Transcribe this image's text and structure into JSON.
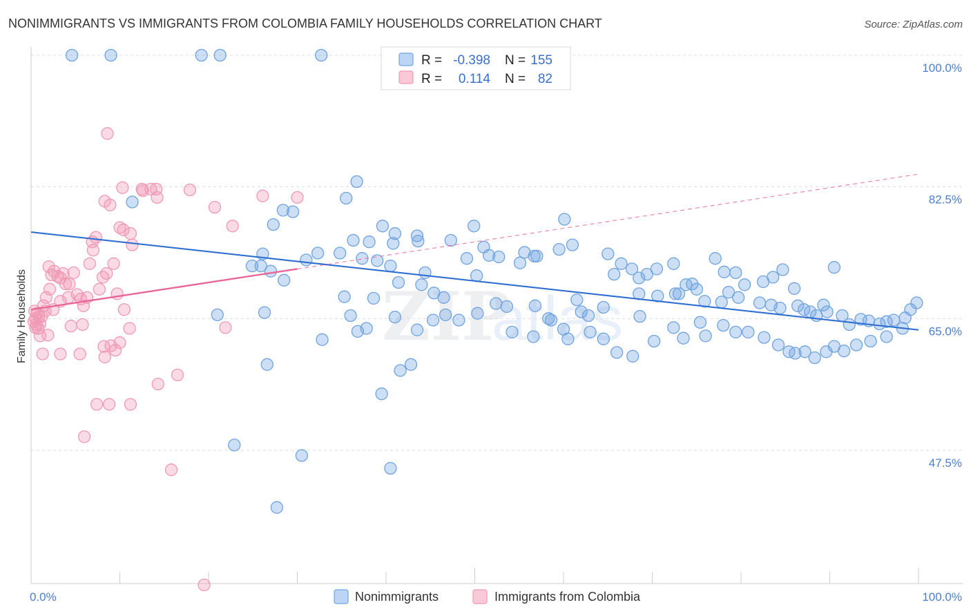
{
  "chart_data": {
    "type": "scatter",
    "title": "NONIMMIGRANTS VS IMMIGRANTS FROM COLOMBIA FAMILY HOUSEHOLDS CORRELATION CHART",
    "source": "Source: ZipAtlas.com",
    "watermark": "ZIPatlas",
    "ylabel": "Family Households",
    "xlabel": "",
    "xlim": [
      0,
      100
    ],
    "ylim": [
      29,
      100
    ],
    "x_tick_labels": [
      "0.0%",
      "100.0%"
    ],
    "y_ticks": [
      47.5,
      65.0,
      82.5,
      100.0
    ],
    "y_tick_labels": [
      "47.5%",
      "65.0%",
      "82.5%",
      "100.0%"
    ],
    "grid": "horizontal dashed",
    "colors": {
      "nonimmigrants": "#6fa3e0",
      "nonimmigrants_line": "#2f6fd1",
      "immigrants": "#f099b4",
      "immigrants_line": "#e8679a",
      "grid": "#d9dde3",
      "axis": "#cccccc"
    },
    "stats": [
      {
        "r_label": "R =",
        "r_value": "-0.398",
        "n_label": "N =",
        "n_value": "155"
      },
      {
        "r_label": "R =",
        "r_value": "0.114",
        "n_label": "N =",
        "n_value": "82"
      }
    ],
    "legend": [
      "Nonimmigrants",
      "Immigrants from Colombia"
    ],
    "series": [
      {
        "name": "Nonimmigrants",
        "trend": {
          "x": [
            0,
            100
          ],
          "y": [
            76.5,
            63.5
          ]
        },
        "points": [
          [
            4.6,
            100
          ],
          [
            9.0,
            100
          ],
          [
            19.2,
            100
          ],
          [
            21.3,
            100
          ],
          [
            32.7,
            100
          ],
          [
            11.4,
            80.5
          ],
          [
            35.5,
            81.0
          ],
          [
            36.7,
            83.2
          ],
          [
            28.4,
            79.4
          ],
          [
            29.5,
            79.2
          ],
          [
            27.3,
            77.5
          ],
          [
            39.6,
            77.3
          ],
          [
            49.9,
            77.3
          ],
          [
            60.1,
            78.2
          ],
          [
            36.3,
            75.4
          ],
          [
            38.1,
            75.2
          ],
          [
            40.8,
            75.0
          ],
          [
            41.0,
            76.3
          ],
          [
            32.3,
            73.7
          ],
          [
            34.8,
            73.7
          ],
          [
            26.1,
            73.6
          ],
          [
            24.9,
            72.0
          ],
          [
            25.9,
            72.0
          ],
          [
            27.0,
            71.3
          ],
          [
            31.0,
            72.8
          ],
          [
            37.3,
            73.0
          ],
          [
            39.0,
            72.7
          ],
          [
            43.5,
            76.0
          ],
          [
            43.6,
            75.3
          ],
          [
            47.3,
            75.4
          ],
          [
            51.0,
            74.5
          ],
          [
            51.6,
            73.4
          ],
          [
            49.1,
            73.0
          ],
          [
            52.7,
            73.2
          ],
          [
            55.6,
            73.8
          ],
          [
            57.0,
            73.3
          ],
          [
            55.1,
            72.4
          ],
          [
            56.7,
            73.3
          ],
          [
            59.5,
            74.2
          ],
          [
            61.0,
            74.8
          ],
          [
            65.0,
            73.6
          ],
          [
            66.5,
            72.3
          ],
          [
            65.7,
            70.9
          ],
          [
            67.7,
            71.6
          ],
          [
            68.5,
            70.4
          ],
          [
            69.4,
            70.9
          ],
          [
            70.5,
            71.6
          ],
          [
            72.4,
            72.3
          ],
          [
            77.1,
            73.0
          ],
          [
            78.1,
            71.2
          ],
          [
            79.4,
            71.1
          ],
          [
            80.4,
            69.5
          ],
          [
            82.5,
            69.9
          ],
          [
            83.6,
            70.5
          ],
          [
            84.7,
            71.5
          ],
          [
            86.0,
            69.0
          ],
          [
            90.5,
            71.8
          ],
          [
            75.9,
            67.3
          ],
          [
            75.0,
            68.9
          ],
          [
            68.5,
            68.3
          ],
          [
            70.6,
            68.0
          ],
          [
            73.0,
            68.3
          ],
          [
            73.8,
            69.5
          ],
          [
            74.5,
            69.6
          ],
          [
            72.6,
            68.3
          ],
          [
            78.6,
            68.5
          ],
          [
            79.7,
            67.8
          ],
          [
            77.8,
            67.2
          ],
          [
            82.1,
            67.1
          ],
          [
            83.4,
            66.8
          ],
          [
            84.4,
            66.4
          ],
          [
            86.4,
            66.7
          ],
          [
            87.1,
            66.2
          ],
          [
            87.8,
            65.9
          ],
          [
            88.5,
            65.4
          ],
          [
            89.3,
            66.8
          ],
          [
            89.7,
            65.9
          ],
          [
            91.4,
            65.4
          ],
          [
            92.2,
            64.2
          ],
          [
            93.5,
            64.9
          ],
          [
            94.4,
            64.7
          ],
          [
            95.6,
            64.3
          ],
          [
            96.4,
            64.6
          ],
          [
            97.2,
            64.8
          ],
          [
            98.5,
            65.1
          ],
          [
            99.1,
            66.2
          ],
          [
            99.8,
            67.1
          ],
          [
            44.4,
            71.1
          ],
          [
            50.2,
            70.7
          ],
          [
            40.5,
            72.0
          ],
          [
            46.5,
            67.8
          ],
          [
            44.0,
            69.5
          ],
          [
            45.4,
            68.4
          ],
          [
            41.4,
            69.8
          ],
          [
            35.3,
            67.9
          ],
          [
            38.6,
            67.7
          ],
          [
            37.8,
            63.7
          ],
          [
            36.0,
            65.4
          ],
          [
            32.8,
            62.2
          ],
          [
            48.2,
            64.8
          ],
          [
            41.0,
            65.2
          ],
          [
            45.3,
            64.8
          ],
          [
            43.5,
            63.5
          ],
          [
            54.2,
            63.2
          ],
          [
            63.0,
            63.2
          ],
          [
            58.6,
            64.8
          ],
          [
            56.6,
            62.6
          ],
          [
            60.5,
            62.3
          ],
          [
            64.5,
            62.3
          ],
          [
            66.0,
            60.5
          ],
          [
            67.8,
            60.0
          ],
          [
            70.2,
            62.0
          ],
          [
            72.4,
            63.8
          ],
          [
            73.5,
            62.4
          ],
          [
            75.4,
            64.5
          ],
          [
            76.0,
            62.7
          ],
          [
            78.0,
            64.1
          ],
          [
            79.4,
            63.2
          ],
          [
            80.8,
            63.2
          ],
          [
            82.6,
            62.5
          ],
          [
            84.2,
            61.5
          ],
          [
            85.4,
            60.6
          ],
          [
            86.1,
            60.4
          ],
          [
            87.2,
            60.6
          ],
          [
            88.3,
            59.8
          ],
          [
            89.6,
            60.6
          ],
          [
            90.5,
            61.3
          ],
          [
            91.6,
            60.7
          ],
          [
            93.0,
            61.5
          ],
          [
            94.6,
            62.0
          ],
          [
            96.4,
            62.6
          ],
          [
            98.2,
            63.7
          ],
          [
            21.0,
            65.5
          ],
          [
            26.3,
            65.8
          ],
          [
            36.8,
            63.3
          ],
          [
            28.5,
            70.1
          ],
          [
            46.7,
            65.5
          ],
          [
            52.4,
            67.0
          ],
          [
            53.6,
            66.6
          ],
          [
            50.3,
            65.7
          ],
          [
            56.8,
            66.7
          ],
          [
            58.3,
            65.0
          ],
          [
            62.8,
            65.4
          ],
          [
            62.0,
            65.9
          ],
          [
            60.0,
            63.6
          ],
          [
            61.5,
            67.5
          ],
          [
            64.5,
            66.5
          ],
          [
            68.6,
            65.3
          ],
          [
            26.6,
            58.9
          ],
          [
            41.6,
            58.1
          ],
          [
            42.8,
            58.9
          ],
          [
            39.5,
            55.0
          ],
          [
            22.9,
            48.2
          ],
          [
            30.5,
            46.8
          ],
          [
            40.5,
            45.1
          ],
          [
            27.7,
            39.9
          ]
        ]
      },
      {
        "name": "Immigrants from Colombia",
        "trend": {
          "x": [
            0,
            30
          ],
          "y": [
            66.2,
            71.6
          ]
        },
        "dashed_trend": {
          "x": [
            30,
            100
          ],
          "y": [
            71.6,
            84.2
          ]
        },
        "points": [
          [
            0.3,
            64.6
          ],
          [
            0.5,
            65.0
          ],
          [
            0.7,
            65.7
          ],
          [
            0.9,
            65.3
          ],
          [
            0.4,
            66.0
          ],
          [
            0.6,
            64.2
          ],
          [
            0.8,
            63.7
          ],
          [
            1.0,
            62.7
          ],
          [
            1.2,
            65.3
          ],
          [
            1.4,
            66.7
          ],
          [
            1.6,
            66.0
          ],
          [
            1.9,
            62.8
          ],
          [
            0.5,
            63.8
          ],
          [
            1.0,
            64.3
          ],
          [
            1.7,
            67.8
          ],
          [
            2.1,
            68.9
          ],
          [
            2.0,
            71.9
          ],
          [
            2.3,
            70.8
          ],
          [
            2.6,
            71.3
          ],
          [
            3.0,
            70.6
          ],
          [
            3.3,
            70.4
          ],
          [
            3.6,
            71.0
          ],
          [
            3.9,
            69.6
          ],
          [
            4.3,
            69.6
          ],
          [
            4.8,
            71.1
          ],
          [
            5.2,
            68.2
          ],
          [
            5.6,
            67.6
          ],
          [
            5.9,
            66.7
          ],
          [
            6.3,
            67.8
          ],
          [
            6.6,
            72.3
          ],
          [
            7.0,
            74.1
          ],
          [
            7.3,
            75.8
          ],
          [
            6.9,
            75.2
          ],
          [
            7.7,
            68.9
          ],
          [
            8.1,
            70.5
          ],
          [
            8.5,
            71.0
          ],
          [
            9.3,
            72.3
          ],
          [
            10.0,
            77.1
          ],
          [
            10.4,
            76.8
          ],
          [
            8.3,
            80.6
          ],
          [
            8.9,
            80.1
          ],
          [
            10.3,
            82.4
          ],
          [
            11.2,
            76.3
          ],
          [
            11.4,
            74.8
          ],
          [
            12.6,
            82.0
          ],
          [
            14.1,
            82.2
          ],
          [
            17.9,
            82.1
          ],
          [
            14.2,
            81.1
          ],
          [
            12.5,
            82.2
          ],
          [
            13.5,
            82.2
          ],
          [
            20.7,
            79.8
          ],
          [
            26.1,
            81.3
          ],
          [
            30.0,
            81.1
          ],
          [
            22.7,
            77.3
          ],
          [
            8.6,
            89.6
          ],
          [
            3.3,
            67.3
          ],
          [
            4.2,
            67.8
          ],
          [
            2.5,
            66.2
          ],
          [
            4.5,
            64.0
          ],
          [
            5.8,
            64.2
          ],
          [
            9.7,
            68.3
          ],
          [
            10.5,
            66.2
          ],
          [
            8.2,
            61.3
          ],
          [
            9.0,
            61.4
          ],
          [
            9.5,
            60.8
          ],
          [
            10.0,
            61.8
          ],
          [
            8.3,
            59.9
          ],
          [
            1.3,
            60.3
          ],
          [
            3.3,
            60.3
          ],
          [
            5.5,
            60.3
          ],
          [
            11.1,
            63.7
          ],
          [
            21.9,
            63.8
          ],
          [
            7.4,
            53.6
          ],
          [
            8.8,
            53.6
          ],
          [
            11.2,
            53.6
          ],
          [
            14.3,
            56.3
          ],
          [
            16.5,
            57.5
          ],
          [
            6.0,
            49.3
          ],
          [
            15.8,
            44.9
          ],
          [
            19.5,
            29.6
          ]
        ]
      }
    ]
  }
}
